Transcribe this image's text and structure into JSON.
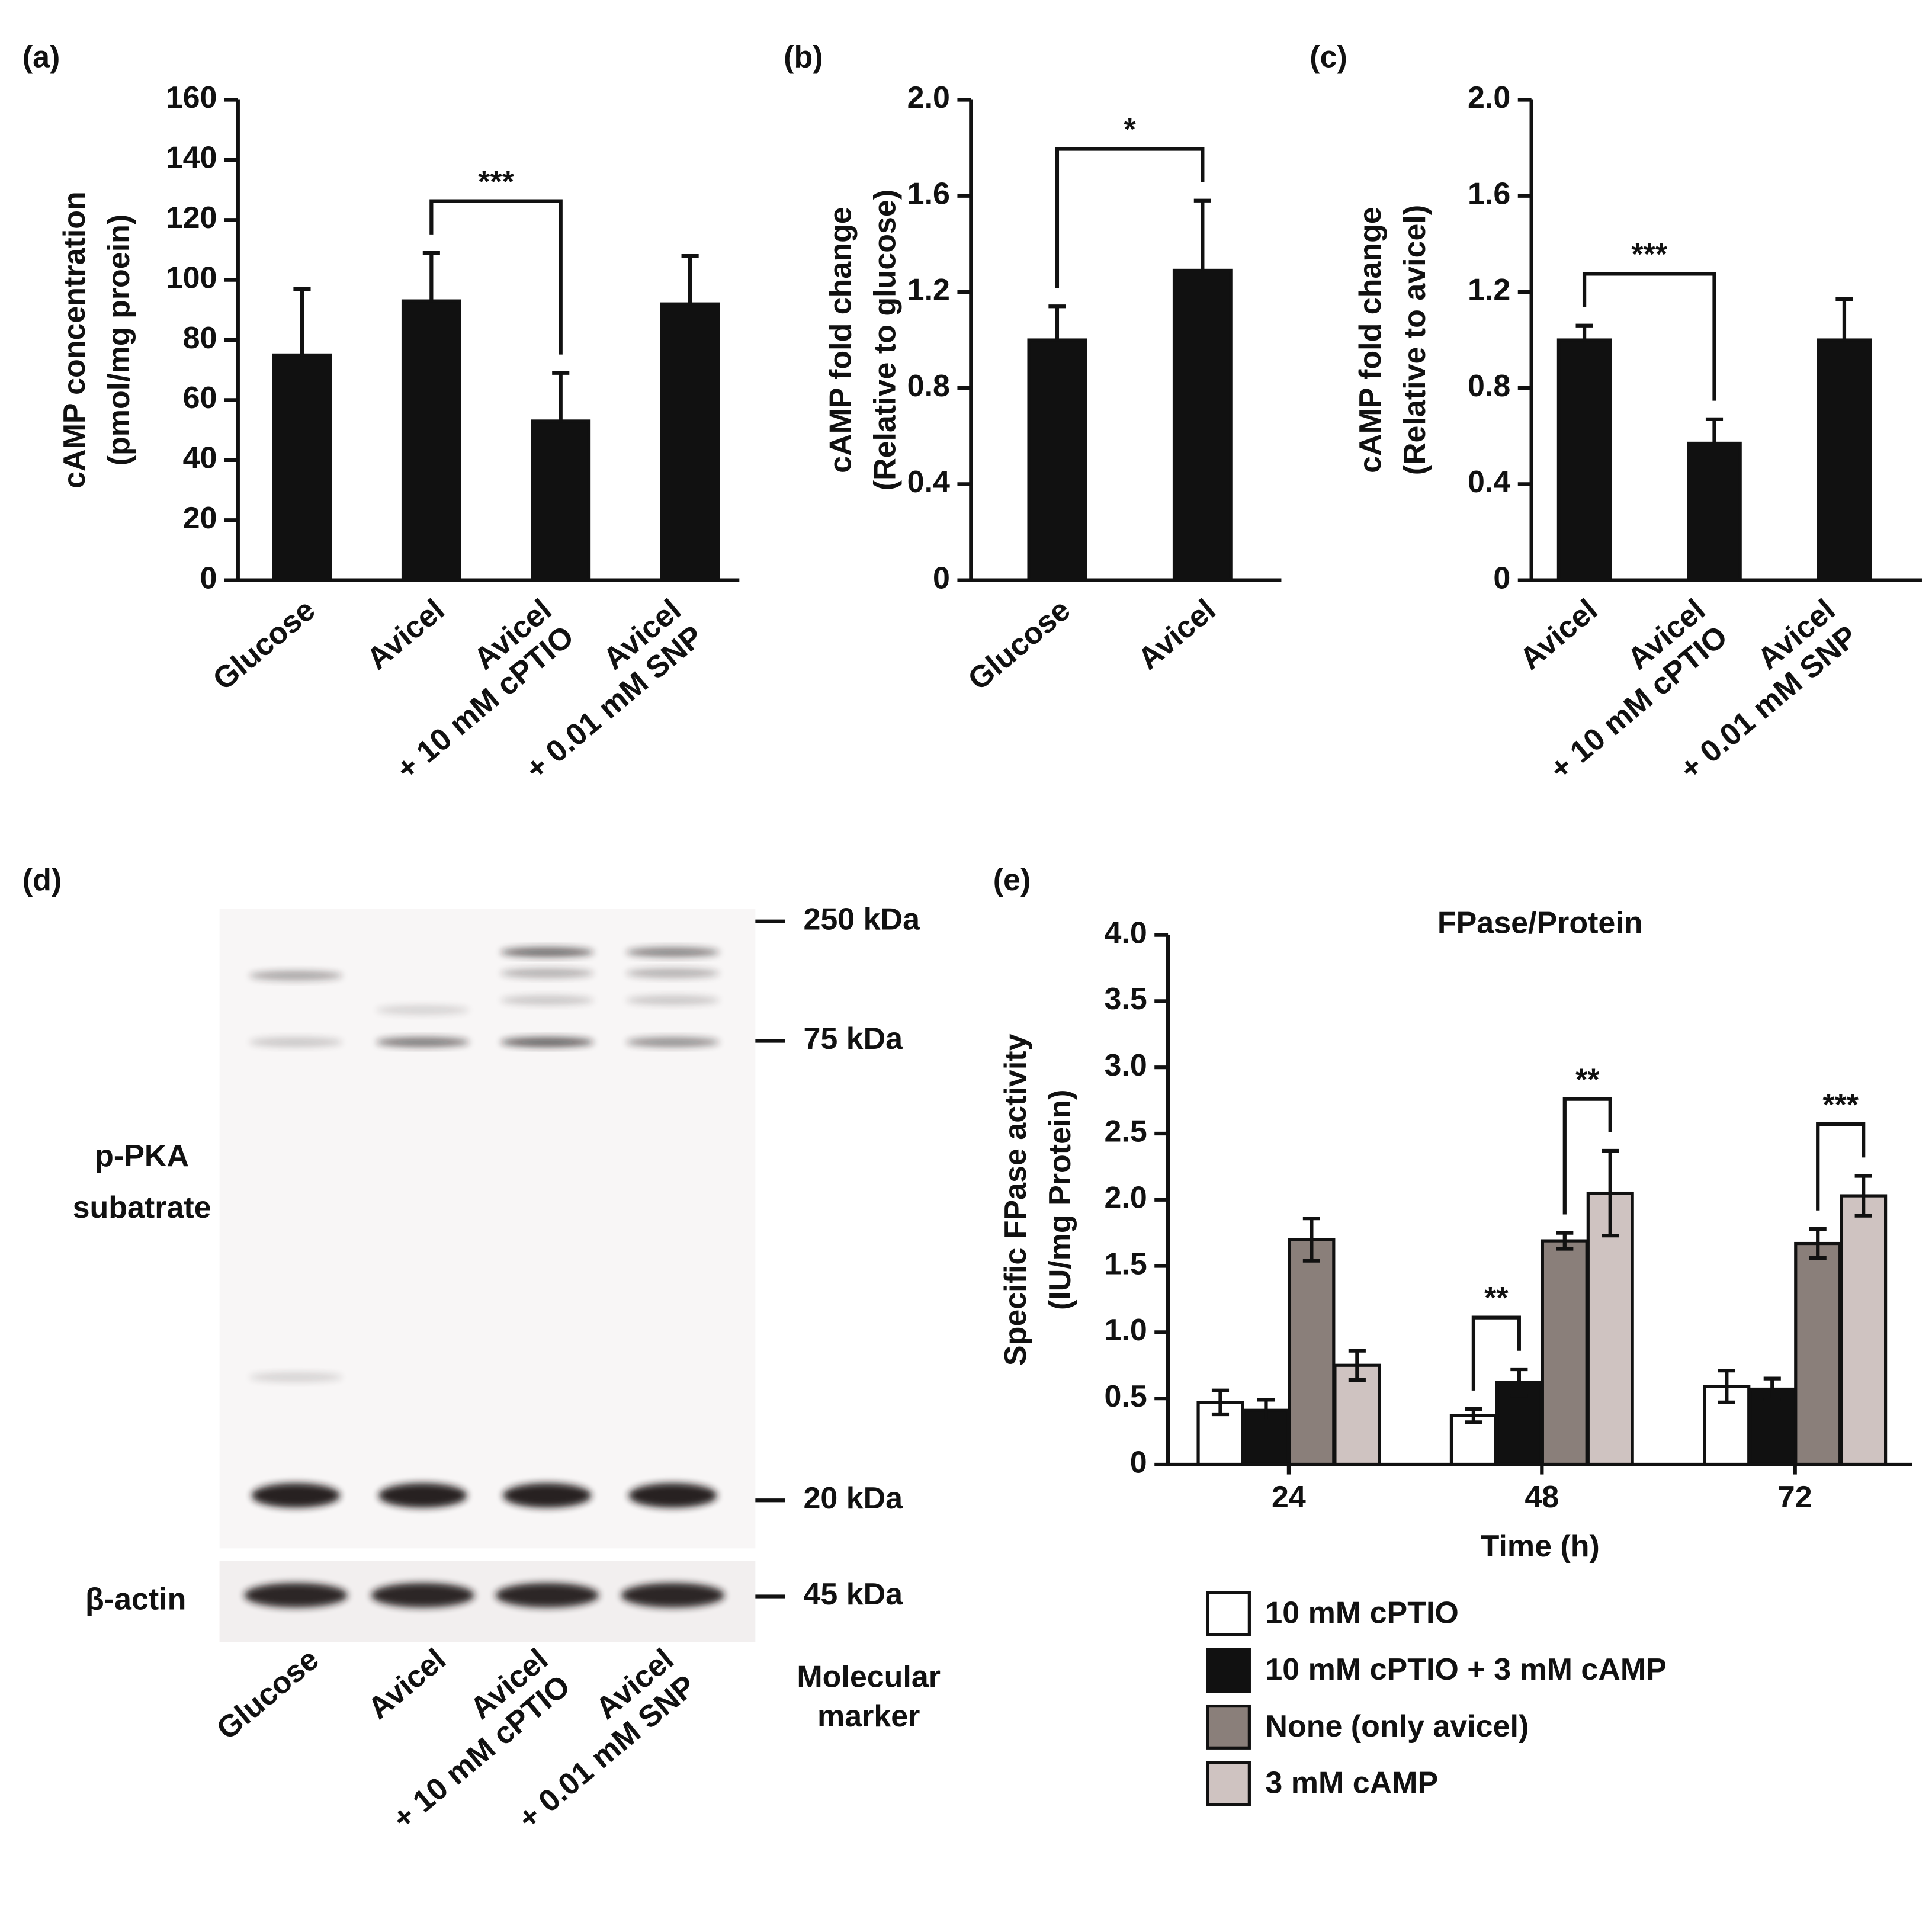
{
  "chart_data": [
    {
      "type": "bar",
      "label": "(a)",
      "ylabel": [
        "cAMP concentration",
        "(pmol/mg proein)"
      ],
      "categories": [
        [
          "Glucose"
        ],
        [
          "Avicel"
        ],
        [
          "Avicel",
          "+ 10 mM cPTIO"
        ],
        [
          "Avicel",
          "+ 0.01 mM SNP"
        ]
      ],
      "series": [
        {
          "color": "#111111",
          "values": [
            75,
            93,
            53,
            92
          ],
          "errors": [
            22,
            16,
            16,
            16
          ]
        }
      ],
      "ylim": [
        0,
        160
      ],
      "yticks": [
        0,
        20,
        40,
        60,
        80,
        100,
        120,
        140,
        160
      ],
      "annotations": [
        {
          "text": "***",
          "from": 1,
          "to": 2
        }
      ]
    },
    {
      "type": "bar",
      "label": "(b)",
      "ylabel": [
        "cAMP fold change",
        "(Relative to glucose)"
      ],
      "categories": [
        [
          "Glucose"
        ],
        [
          "Avicel"
        ]
      ],
      "series": [
        {
          "color": "#111111",
          "values": [
            1.0,
            1.29
          ],
          "errors": [
            0.14,
            0.29
          ]
        }
      ],
      "ylim": [
        0,
        2
      ],
      "yticks": [
        0,
        0.4,
        0.8,
        1.2,
        1.6,
        {
          "value": 2,
          "label": "2.0"
        }
      ],
      "annotations": [
        {
          "text": "*",
          "from": 0,
          "to": 1
        }
      ]
    },
    {
      "type": "bar",
      "label": "(c)",
      "ylabel": [
        "cAMP fold change",
        "(Relative to avicel)"
      ],
      "categories": [
        [
          "Avicel"
        ],
        [
          "Avicel",
          "+ 10 mM cPTIO"
        ],
        [
          "Avicel",
          "+ 0.01 mM SNP"
        ]
      ],
      "series": [
        {
          "color": "#111111",
          "values": [
            1.0,
            0.57,
            1.0
          ],
          "errors": [
            0.06,
            0.1,
            0.17
          ]
        }
      ],
      "ylim": [
        0,
        2
      ],
      "yticks": [
        0,
        0.4,
        0.8,
        1.2,
        1.6,
        {
          "value": 2,
          "label": "2.0"
        }
      ],
      "annotations": [
        {
          "text": "***",
          "from": 0,
          "to": 1
        }
      ]
    },
    {
      "type": "bar",
      "label": "(e)",
      "title": "FPase/Protein",
      "xlabel": "Time (h)",
      "ylabel": [
        "Specific FPase activity",
        "(IU/mg Protein)"
      ],
      "categories": [
        "24",
        "48",
        "72"
      ],
      "series": [
        {
          "name": "10 mM cPTIO",
          "color": "#ffffff",
          "values": [
            0.47,
            0.37,
            0.59
          ],
          "errors": [
            0.09,
            0.05,
            0.12
          ]
        },
        {
          "name": "10 mM cPTIO + 3 mM cAMP",
          "color": "#111111",
          "values": [
            0.41,
            0.62,
            0.57
          ],
          "errors": [
            0.08,
            0.1,
            0.08
          ]
        },
        {
          "name": "None (only avicel)",
          "color": "#8a7f7a",
          "values": [
            1.7,
            1.69,
            1.67
          ],
          "errors": [
            0.16,
            0.06,
            0.11
          ]
        },
        {
          "name": "3 mM cAMP",
          "color": "#cfc3c1",
          "values": [
            0.75,
            2.05,
            2.03
          ],
          "errors": [
            0.11,
            0.32,
            0.15
          ]
        }
      ],
      "ylim": [
        0,
        4
      ],
      "yticks": [
        0,
        0.5,
        {
          "value": 1,
          "label": "1.0"
        },
        1.5,
        {
          "value": 2,
          "label": "2.0"
        },
        2.5,
        {
          "value": 3,
          "label": "3.0"
        },
        3.5,
        {
          "value": 4,
          "label": "4.0"
        }
      ],
      "legend": "bottom",
      "annotations": [
        {
          "text": "**",
          "category": 1,
          "from": 0,
          "to": 1
        },
        {
          "text": "**",
          "category": 1,
          "from": 2,
          "to": 3
        },
        {
          "text": "***",
          "category": 2,
          "from": 2,
          "to": 3
        }
      ]
    }
  ],
  "blot": {
    "label": "(d)",
    "protein": [
      "p-PKA",
      "subatrate"
    ],
    "control": "β-actin",
    "markers": [
      "250 kDa",
      "75 kDa",
      "20 kDa",
      "45 kDa"
    ],
    "lanes": [
      [
        "Glucose"
      ],
      [
        "Avicel"
      ],
      [
        "Avicel",
        "+ 10 mM cPTIO"
      ],
      [
        "Avicel",
        "+ 0.01 mM SNP"
      ]
    ],
    "marker_label": [
      "Molecular",
      "marker"
    ]
  }
}
